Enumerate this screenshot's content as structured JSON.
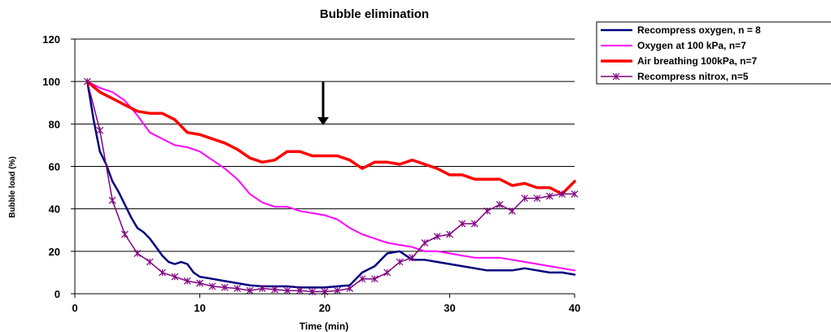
{
  "chart_data": {
    "type": "line",
    "title": "Bubble elimination",
    "xlabel": "Time (min)",
    "ylabel": "Bubble load (%)",
    "xlim": [
      0,
      40
    ],
    "ylim": [
      0,
      120
    ],
    "xticks": [
      0,
      10,
      20,
      30,
      40
    ],
    "yticks": [
      0,
      20,
      40,
      60,
      80,
      100,
      120
    ],
    "grid": "horizontal",
    "legend_position": "top-right",
    "annotation": {
      "type": "arrow",
      "x": 20,
      "y_from": 100,
      "y_to": 80
    },
    "series": [
      {
        "name": "Recompress oxygen, n = 8",
        "color": "#000080",
        "marker": "none",
        "x": [
          1,
          1.5,
          2,
          2.5,
          3,
          3.5,
          4,
          4.5,
          5,
          5.5,
          6,
          6.5,
          7,
          7.5,
          8,
          8.5,
          9,
          9.5,
          10,
          11,
          12,
          13,
          14,
          15,
          16,
          17,
          18,
          19,
          20,
          21,
          22,
          23,
          24,
          25,
          26,
          27,
          28,
          29,
          30,
          31,
          32,
          33,
          34,
          35,
          36,
          37,
          38,
          39,
          40
        ],
        "values": [
          100,
          82,
          67,
          61,
          53,
          48,
          42,
          36,
          31,
          29,
          26,
          22,
          18,
          15,
          14,
          15,
          14,
          10,
          8,
          7,
          6,
          5,
          4,
          3.5,
          3.5,
          3.5,
          3,
          3,
          3,
          3.5,
          4,
          10,
          13,
          19,
          20,
          16,
          16,
          15,
          14,
          13,
          12,
          11,
          11,
          11,
          12,
          11,
          10,
          10,
          9
        ]
      },
      {
        "name": "Oxygen at 100 kPa, n=7",
        "color": "#ff00ff",
        "marker": "none",
        "x": [
          1,
          2,
          3,
          4,
          5,
          6,
          7,
          8,
          9,
          10,
          11,
          12,
          13,
          14,
          15,
          16,
          17,
          18,
          19,
          20,
          21,
          22,
          23,
          24,
          25,
          26,
          27,
          28,
          29,
          30,
          31,
          32,
          33,
          34,
          35,
          36,
          37,
          38,
          39,
          40
        ],
        "values": [
          100,
          97,
          95,
          91,
          84,
          76,
          73,
          70,
          69,
          67,
          63,
          59,
          54,
          47,
          43,
          41,
          41,
          39,
          38,
          37,
          35,
          31,
          28,
          26,
          24,
          23,
          22,
          20,
          20,
          19,
          18,
          17,
          17,
          17,
          16,
          15,
          14,
          13,
          12,
          11
        ]
      },
      {
        "name": "Air breathing 100kPa, n=7",
        "color": "#ff0000",
        "marker": "none",
        "x": [
          1,
          2,
          3,
          4,
          5,
          6,
          7,
          8,
          9,
          10,
          11,
          12,
          13,
          14,
          15,
          16,
          17,
          18,
          19,
          20,
          21,
          22,
          23,
          24,
          25,
          26,
          27,
          28,
          29,
          30,
          31,
          32,
          33,
          34,
          35,
          36,
          37,
          38,
          39,
          40
        ],
        "values": [
          100,
          95,
          92,
          89,
          86,
          85,
          85,
          82,
          76,
          75,
          73,
          71,
          68,
          64,
          62,
          63,
          67,
          67,
          65,
          65,
          65,
          63,
          59,
          62,
          62,
          61,
          63,
          61,
          59,
          56,
          56,
          54,
          54,
          54,
          51,
          52,
          50,
          50,
          47,
          53
        ]
      },
      {
        "name": "Recompress nitrox, n=5",
        "color": "#800080",
        "marker": "asterisk",
        "x": [
          1,
          2,
          3,
          4,
          5,
          6,
          7,
          8,
          9,
          10,
          11,
          12,
          13,
          14,
          15,
          16,
          17,
          18,
          19,
          20,
          21,
          22,
          23,
          24,
          25,
          26,
          27,
          28,
          29,
          30,
          31,
          32,
          33,
          34,
          35,
          36,
          37,
          38,
          39,
          40
        ],
        "values": [
          100,
          77,
          44,
          28,
          19,
          15,
          10,
          8,
          6,
          5,
          3.5,
          3,
          2.5,
          1.5,
          2.5,
          2,
          1.5,
          1.5,
          1,
          1,
          1.5,
          2.5,
          7,
          7,
          10,
          15,
          17,
          24,
          27,
          28,
          33,
          33,
          39,
          42,
          39,
          45,
          45,
          46,
          47,
          47
        ]
      }
    ]
  }
}
